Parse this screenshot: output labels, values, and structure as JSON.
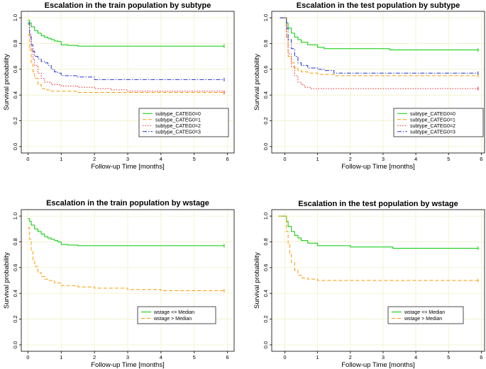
{
  "chart_data": [
    {
      "type": "line",
      "subtype": "kaplan-meier",
      "title": "Escalation in the train population by subtype",
      "xlabel": "Follow-up Time [months]",
      "ylabel": "Survival probability",
      "xlim": [
        -0.2,
        6.2
      ],
      "ylim": [
        -0.05,
        1.05
      ],
      "xticks": [
        0,
        1,
        2,
        3,
        4,
        5,
        6
      ],
      "yticks": [
        0.0,
        0.2,
        0.4,
        0.6,
        0.8,
        1.0
      ],
      "ytick_labels": [
        "0.0",
        "0.2",
        "0.4",
        "0.6",
        "0.8",
        "1.0"
      ],
      "grid": true,
      "legend_position": "bottom-right",
      "series": [
        {
          "name": "subtype_CATEG0=0",
          "color": "#00cc00",
          "dash": "solid",
          "x": [
            0,
            0.05,
            0.1,
            0.2,
            0.3,
            0.4,
            0.5,
            0.6,
            0.7,
            0.8,
            0.9,
            1.0,
            1.2,
            1.5,
            2.0,
            3.0,
            4.0,
            5.0,
            5.9
          ],
          "y": [
            0.98,
            0.96,
            0.93,
            0.9,
            0.88,
            0.86,
            0.85,
            0.84,
            0.83,
            0.82,
            0.815,
            0.79,
            0.785,
            0.78,
            0.78,
            0.78,
            0.78,
            0.78,
            0.78
          ]
        },
        {
          "name": "subtype_CATEG0=1",
          "color": "#ff9900",
          "dash": "dashed",
          "x": [
            0,
            0.05,
            0.1,
            0.15,
            0.2,
            0.3,
            0.4,
            0.5,
            0.7,
            1.0,
            1.5,
            2.0,
            3.0,
            4.0,
            5.0,
            5.9
          ],
          "y": [
            0.87,
            0.75,
            0.65,
            0.58,
            0.53,
            0.48,
            0.45,
            0.44,
            0.43,
            0.43,
            0.42,
            0.42,
            0.42,
            0.42,
            0.42,
            0.42
          ]
        },
        {
          "name": "subtype_CATEG0=2",
          "color": "#ee2222",
          "dash": "dotted",
          "x": [
            0,
            0.05,
            0.1,
            0.15,
            0.2,
            0.3,
            0.4,
            0.5,
            0.7,
            1.0,
            1.5,
            2.0,
            2.5,
            3.0,
            4.0,
            5.0,
            5.9
          ],
          "y": [
            0.95,
            0.85,
            0.75,
            0.68,
            0.63,
            0.57,
            0.53,
            0.5,
            0.48,
            0.47,
            0.46,
            0.45,
            0.44,
            0.43,
            0.43,
            0.43,
            0.42
          ]
        },
        {
          "name": "subtype_CATEG0=3",
          "color": "#2233cc",
          "dash": "dashdot",
          "x": [
            0,
            0.05,
            0.1,
            0.15,
            0.2,
            0.3,
            0.4,
            0.5,
            0.6,
            0.7,
            0.8,
            0.9,
            1.0,
            1.5,
            2.0,
            3.0,
            4.0,
            5.0,
            5.9
          ],
          "y": [
            0.96,
            0.87,
            0.79,
            0.74,
            0.7,
            0.68,
            0.66,
            0.65,
            0.63,
            0.6,
            0.58,
            0.57,
            0.55,
            0.54,
            0.52,
            0.52,
            0.52,
            0.52,
            0.52
          ]
        }
      ]
    },
    {
      "type": "line",
      "subtype": "kaplan-meier",
      "title": "Escalation in the test population by subtype",
      "xlabel": "Follow-up Time [months]",
      "ylabel": "Survival probability",
      "xlim": [
        -0.4,
        6.1
      ],
      "ylim": [
        -0.05,
        1.05
      ],
      "xticks": [
        0,
        1,
        2,
        3,
        4,
        5,
        6
      ],
      "yticks": [
        0.0,
        0.2,
        0.4,
        0.6,
        0.8,
        1.0
      ],
      "ytick_labels": [
        "0.0",
        "0.2",
        "0.4",
        "0.6",
        "0.8",
        "1.0"
      ],
      "grid": true,
      "legend_position": "bottom-right",
      "series": [
        {
          "name": "subtype_CATEG0=0",
          "color": "#00cc00",
          "dash": "solid",
          "x": [
            -0.15,
            0,
            0.05,
            0.1,
            0.2,
            0.3,
            0.4,
            0.5,
            0.7,
            1.0,
            1.2,
            1.5,
            2.0,
            3.0,
            3.2,
            4.0,
            5.0,
            5.9
          ],
          "y": [
            1.0,
            1.0,
            0.96,
            0.92,
            0.88,
            0.85,
            0.83,
            0.81,
            0.79,
            0.77,
            0.76,
            0.76,
            0.76,
            0.76,
            0.75,
            0.75,
            0.75,
            0.75
          ]
        },
        {
          "name": "subtype_CATEG0=1",
          "color": "#ff9900",
          "dash": "dashed",
          "x": [
            -0.15,
            0,
            0.05,
            0.1,
            0.2,
            0.3,
            0.4,
            0.5,
            0.7,
            1.0,
            1.5,
            2.0,
            3.0,
            4.0,
            5.0,
            5.9
          ],
          "y": [
            1.0,
            1.0,
            0.85,
            0.7,
            0.65,
            0.61,
            0.59,
            0.58,
            0.57,
            0.56,
            0.55,
            0.55,
            0.55,
            0.55,
            0.55,
            0.55
          ]
        },
        {
          "name": "subtype_CATEG0=2",
          "color": "#ee2222",
          "dash": "dotted",
          "x": [
            -0.15,
            0,
            0.05,
            0.1,
            0.2,
            0.3,
            0.4,
            0.5,
            0.6,
            0.8,
            1.0,
            1.5,
            2.0,
            3.0,
            4.0,
            5.0,
            5.9
          ],
          "y": [
            1.0,
            1.0,
            0.85,
            0.72,
            0.62,
            0.55,
            0.5,
            0.48,
            0.46,
            0.45,
            0.45,
            0.45,
            0.45,
            0.45,
            0.45,
            0.45,
            0.45
          ]
        },
        {
          "name": "subtype_CATEG0=3",
          "color": "#2233cc",
          "dash": "dashdot",
          "x": [
            -0.15,
            0,
            0.05,
            0.1,
            0.2,
            0.3,
            0.4,
            0.5,
            0.7,
            1.0,
            1.2,
            1.5,
            2.0,
            3.0,
            4.0,
            5.0,
            5.9
          ],
          "y": [
            1.0,
            1.0,
            0.92,
            0.83,
            0.76,
            0.7,
            0.65,
            0.63,
            0.61,
            0.6,
            0.59,
            0.57,
            0.57,
            0.57,
            0.57,
            0.57,
            0.57
          ]
        }
      ]
    },
    {
      "type": "line",
      "subtype": "kaplan-meier",
      "title": "Escalation in the train population by wstage",
      "xlabel": "Follow-up Time [months]",
      "ylabel": "Survival probability",
      "xlim": [
        -0.2,
        6.2
      ],
      "ylim": [
        -0.05,
        1.05
      ],
      "xticks": [
        0,
        1,
        2,
        3,
        4,
        5,
        6
      ],
      "yticks": [
        0.0,
        0.2,
        0.4,
        0.6,
        0.8,
        1.0
      ],
      "ytick_labels": [
        "0.0",
        "0.2",
        "0.4",
        "0.6",
        "0.8",
        "1.0"
      ],
      "grid": true,
      "legend_position": "bottom-right",
      "series": [
        {
          "name": "wstage <= Median",
          "color": "#00cc00",
          "dash": "solid",
          "x": [
            0,
            0.05,
            0.1,
            0.2,
            0.3,
            0.4,
            0.5,
            0.6,
            0.7,
            0.8,
            0.9,
            1.0,
            1.2,
            1.5,
            2.0,
            3.0,
            4.0,
            5.0,
            5.9
          ],
          "y": [
            0.98,
            0.96,
            0.93,
            0.9,
            0.88,
            0.86,
            0.84,
            0.83,
            0.82,
            0.81,
            0.8,
            0.78,
            0.775,
            0.77,
            0.77,
            0.77,
            0.77,
            0.77,
            0.77
          ]
        },
        {
          "name": "wstage > Median",
          "color": "#ff9900",
          "dash": "dashed",
          "x": [
            0,
            0.05,
            0.1,
            0.15,
            0.2,
            0.3,
            0.4,
            0.5,
            0.6,
            0.8,
            1.0,
            1.5,
            2.0,
            3.0,
            4.0,
            5.0,
            5.9
          ],
          "y": [
            0.91,
            0.82,
            0.73,
            0.66,
            0.61,
            0.56,
            0.53,
            0.51,
            0.5,
            0.48,
            0.46,
            0.45,
            0.44,
            0.43,
            0.42,
            0.42,
            0.42
          ]
        }
      ]
    },
    {
      "type": "line",
      "subtype": "kaplan-meier",
      "title": "Escalation in the test population by wstage",
      "xlabel": "Follow-up Time [months]",
      "ylabel": "Survival probability",
      "xlim": [
        -0.4,
        6.1
      ],
      "ylim": [
        -0.05,
        1.05
      ],
      "xticks": [
        0,
        1,
        2,
        3,
        4,
        5,
        6
      ],
      "yticks": [
        0.0,
        0.2,
        0.4,
        0.6,
        0.8,
        1.0
      ],
      "ytick_labels": [
        "0.0",
        "0.2",
        "0.4",
        "0.6",
        "0.8",
        "1.0"
      ],
      "grid": true,
      "legend_position": "bottom-right",
      "series": [
        {
          "name": "wstage <= Median",
          "color": "#00cc00",
          "dash": "solid",
          "x": [
            -0.2,
            0,
            0.05,
            0.1,
            0.2,
            0.3,
            0.4,
            0.5,
            0.7,
            1.0,
            1.5,
            2.0,
            3.0,
            3.3,
            4.0,
            5.0,
            5.9
          ],
          "y": [
            1.0,
            1.0,
            0.96,
            0.92,
            0.88,
            0.85,
            0.83,
            0.81,
            0.79,
            0.77,
            0.77,
            0.76,
            0.76,
            0.75,
            0.75,
            0.75,
            0.75
          ]
        },
        {
          "name": "wstage > Median",
          "color": "#ff9900",
          "dash": "dashed",
          "x": [
            -0.2,
            0,
            0.05,
            0.1,
            0.15,
            0.2,
            0.3,
            0.4,
            0.5,
            0.7,
            1.0,
            1.5,
            2.0,
            3.0,
            4.0,
            5.0,
            5.9
          ],
          "y": [
            1.0,
            1.0,
            0.88,
            0.78,
            0.7,
            0.64,
            0.58,
            0.54,
            0.52,
            0.51,
            0.5,
            0.5,
            0.5,
            0.5,
            0.5,
            0.5,
            0.5
          ]
        }
      ]
    }
  ]
}
